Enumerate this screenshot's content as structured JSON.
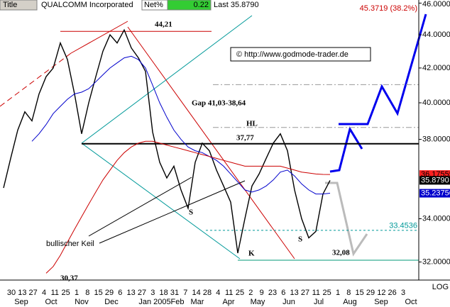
{
  "header": {
    "title_label": "Title",
    "name": "QUALCOMM Incorporated",
    "net_label": "Net%",
    "net_value": 0.22,
    "last": "Last 35.8790"
  },
  "chart_data": {
    "type": "line",
    "log": true,
    "ylim": [
      31.2,
      46.2
    ],
    "yticks": [
      {
        "value": 32,
        "label": "32.0000"
      },
      {
        "value": 34,
        "label": "34.0000"
      },
      {
        "value": 38,
        "label": "38.0000"
      },
      {
        "value": 40,
        "label": "40.0000"
      },
      {
        "value": 42,
        "label": "42.0000"
      },
      {
        "value": 44,
        "label": "44.0000"
      },
      {
        "value": 46,
        "label": "46.0000"
      }
    ],
    "series": [
      {
        "color": "#000000",
        "values": [
          35.5,
          37.0,
          38.5,
          39.5,
          39.0,
          40.5,
          41.5,
          42.0,
          43.5,
          42.5,
          40.5,
          38.3,
          40.0,
          41.5,
          43.0,
          44.0,
          43.5,
          44.3,
          43.2,
          42.6,
          41.8,
          38.4,
          36.8,
          36.0,
          36.6,
          35.4,
          34.5,
          36.8,
          37.8,
          37.4,
          36.4,
          35.6,
          34.8,
          32.4,
          34.0,
          35.6,
          36.2,
          37.0,
          37.8,
          38.3,
          37.4,
          35.4,
          34.0,
          33.1,
          33.4,
          35.2,
          35.879
        ]
      },
      {
        "color": "#0000cc",
        "values": [
          null,
          null,
          null,
          null,
          37.9,
          38.3,
          38.8,
          39.4,
          39.8,
          40.2,
          40.5,
          40.6,
          40.8,
          41.2,
          41.6,
          42.0,
          42.3,
          42.6,
          42.7,
          42.5,
          42.0,
          41.0,
          40.0,
          39.2,
          38.5,
          38.0,
          37.6,
          37.4,
          37.3,
          37.1,
          36.9,
          36.6,
          36.2,
          35.8,
          35.4,
          35.3,
          35.4,
          35.6,
          35.9,
          36.3,
          36.4,
          36.1,
          35.7,
          35.4,
          35.2,
          35.2,
          35.23756
        ]
      },
      {
        "color": "#cc0000",
        "values": [
          null,
          null,
          null,
          null,
          null,
          null,
          31.5,
          31.8,
          32.3,
          32.9,
          33.5,
          34.1,
          34.7,
          35.3,
          35.9,
          36.4,
          36.9,
          37.3,
          37.6,
          37.8,
          37.9,
          37.9,
          37.8,
          37.7,
          37.6,
          37.5,
          37.4,
          37.3,
          37.2,
          37.1,
          37.0,
          36.9,
          36.8,
          36.7,
          36.6,
          36.6,
          36.6,
          36.6,
          36.6,
          36.6,
          36.5,
          36.4,
          36.3,
          36.25,
          36.2,
          36.18,
          36.17555
        ]
      }
    ],
    "levels": [
      44.21,
      41.03,
      38.64,
      37.77,
      33.4536,
      32.08
    ],
    "price_labels": [
      {
        "value": 45.3719,
        "label": "45.3719 (38.2%)"
      },
      {
        "value": 36.17555,
        "label": "36.17555"
      },
      {
        "value": 35.879,
        "label": "35.8790"
      },
      {
        "value": 35.23756,
        "label": "35.23756"
      },
      {
        "value": 33.4536,
        "label": "33.4536"
      }
    ],
    "annotations": [
      "44,21",
      "Gap 41,03-38,64",
      "37,77",
      "HL",
      "S",
      "S",
      "K",
      "32,08",
      "bullischer Keil",
      "30,37"
    ],
    "copyright": "© http://www.godmode-trader.de",
    "scale_label": "LOG",
    "day_labels": [
      "30",
      "13",
      "27",
      "4",
      "11",
      "25",
      "1",
      "8",
      "15",
      "29",
      "6",
      "13",
      "27",
      "3",
      "18",
      "31",
      "7",
      "14",
      "28",
      "4",
      "11",
      "25",
      "2",
      "9",
      "23",
      "6",
      "13",
      "27",
      "11",
      "25",
      "1",
      "8",
      "15",
      "29",
      "12",
      "26",
      "3"
    ],
    "month_labels": [
      "Sep",
      "Oct",
      "Nov",
      "Dec",
      "Jan 2005",
      "Feb",
      "Mar",
      "Apr",
      "May",
      "Jun",
      "Jul",
      "Aug",
      "Sep",
      "Oct"
    ]
  }
}
